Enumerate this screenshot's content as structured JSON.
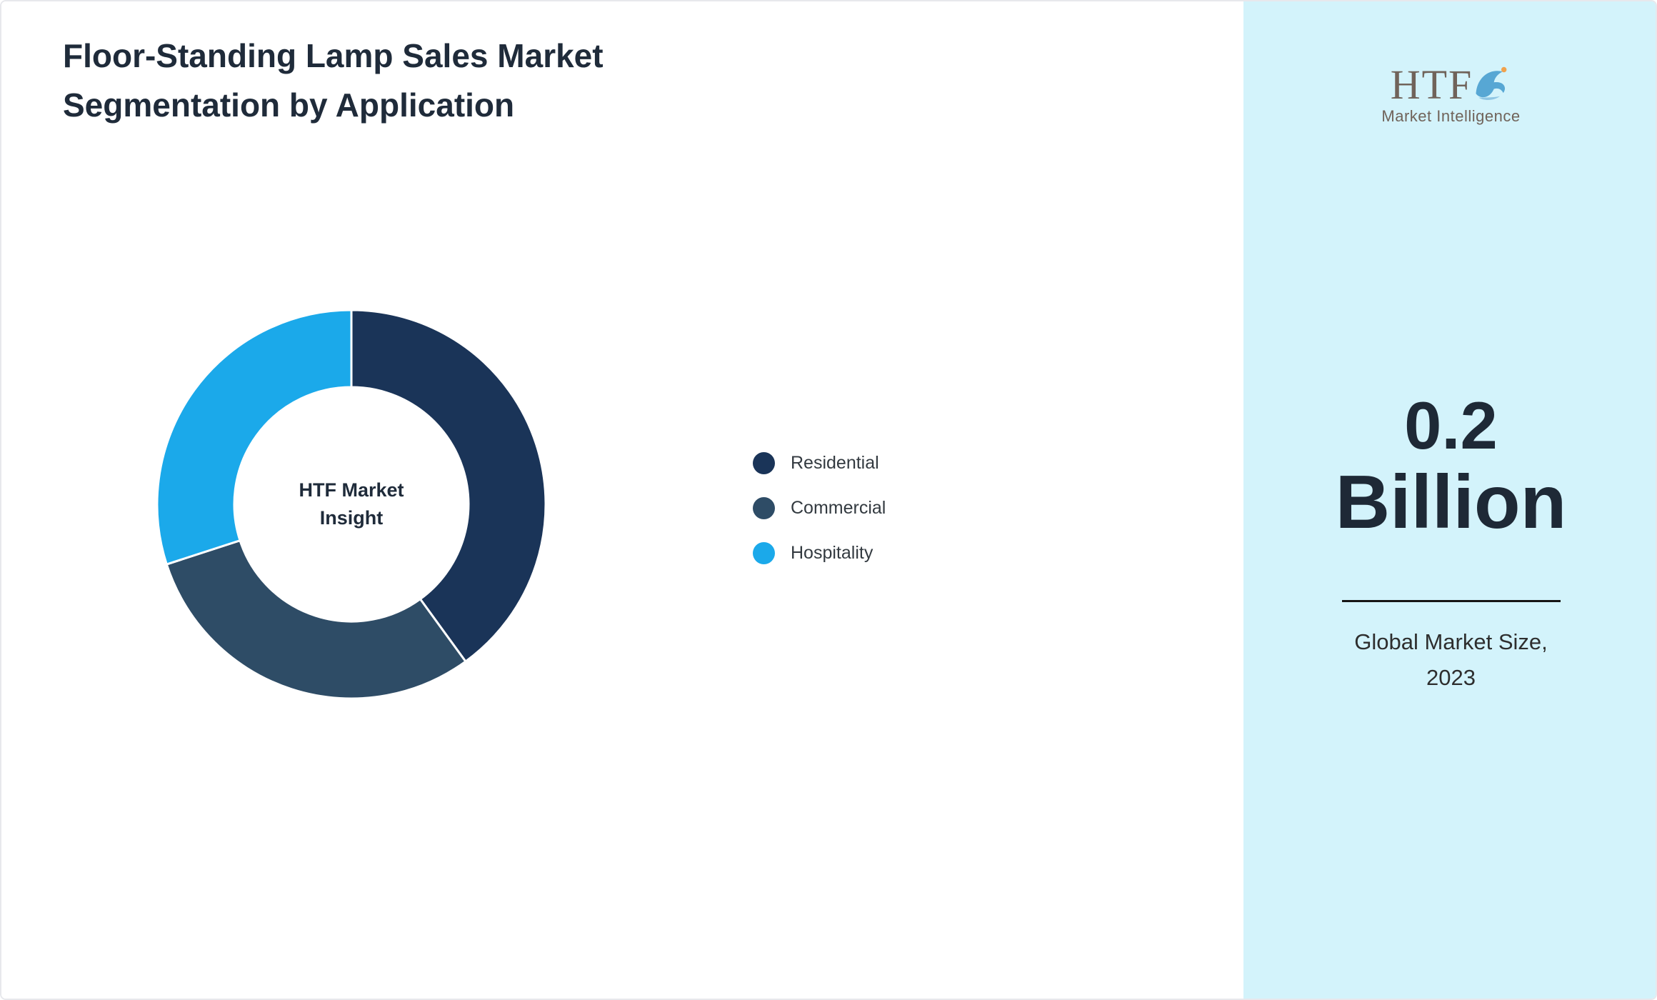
{
  "header": {
    "title_line1": "Floor-Standing Lamp Sales Market",
    "title_line2": "Segmentation by Application"
  },
  "chart_data": {
    "type": "pie",
    "donut": true,
    "title": "Floor-Standing Lamp Sales Market Segmentation by Application",
    "categories": [
      "Residential",
      "Commercial",
      "Hospitality"
    ],
    "values": [
      40,
      30,
      30
    ],
    "colors": [
      "#1a3458",
      "#2e4c66",
      "#1ba9ea"
    ],
    "center_label_line1": "HTF Market",
    "center_label_line2": "Insight",
    "legend_position": "right",
    "start_angle_deg": 0,
    "direction": "clockwise"
  },
  "sidebar": {
    "logo_text": "HTF",
    "logo_subtext": "Market Intelligence",
    "stat_value_line1": "0.2",
    "stat_value_line2": "Billion",
    "caption_line1": "Global Market Size,",
    "caption_line2": "2023"
  },
  "colors": {
    "panel_background": "#d3f3fb",
    "title_text": "#1f2b3a",
    "residential": "#1a3458",
    "commercial": "#2e4c66",
    "hospitality": "#1ba9ea",
    "logo_text_color": "#70635a"
  }
}
